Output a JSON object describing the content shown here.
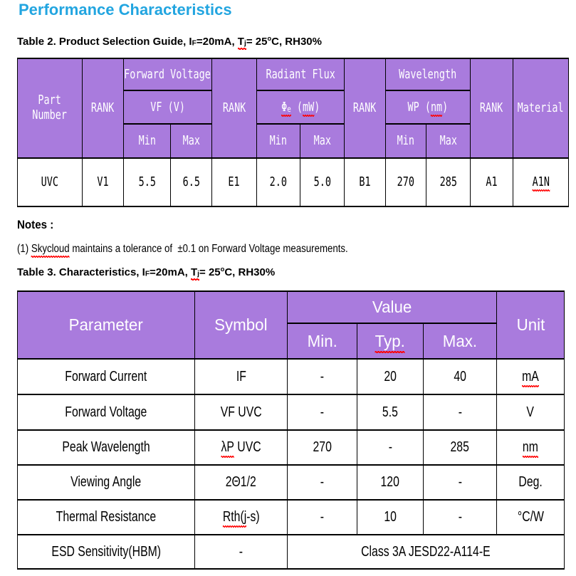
{
  "colors": {
    "title": "#22a5e0",
    "table_header_fill": "#a97bdd",
    "header_text": "#ffffff",
    "body_text": "#000000",
    "border": "#000000",
    "squiggle": "#ff0000"
  },
  "title": "Performance Characteristics",
  "table2": {
    "caption": [
      {
        "t": "Table 2. Product Selection Guide, I"
      },
      {
        "t": "F",
        "sub": 1
      },
      {
        "t": "=20mA, "
      },
      {
        "sq": 1,
        "parts": [
          {
            "t": "T"
          },
          {
            "t": "j",
            "sub": 1
          }
        ]
      },
      {
        "t": "= 25"
      },
      {
        "t": "o",
        "sup": 1
      },
      {
        "t": "C, RH30%"
      }
    ],
    "header": {
      "part_number": "Part\nNumber",
      "rank": "RANK",
      "min": "Min",
      "max": "Max",
      "material": "Material",
      "groups": {
        "forward_voltage": {
          "title": "Forward Voltage",
          "symbol": [
            {
              "t": "VF (V)"
            }
          ]
        },
        "radiant_flux": {
          "title": "Radiant Flux",
          "symbol": [
            {
              "sq": 1,
              "parts": [
                {
                  "t": "Φ"
                },
                {
                  "t": "e",
                  "sub": 1
                }
              ]
            },
            {
              "t": " ("
            },
            {
              "t": "mW",
              "sq": 1
            },
            {
              "t": ")"
            }
          ]
        },
        "wavelength": {
          "title": "Wavelength",
          "symbol": [
            {
              "t": "WP ("
            },
            {
              "t": "nm",
              "sq": 1
            },
            {
              "t": ")"
            }
          ]
        }
      }
    },
    "row": {
      "part": "UVC",
      "rank_v": "V1",
      "vf_min": "5.5",
      "vf_max": "6.5",
      "rank_e": "E1",
      "flux_min": "2.0",
      "flux_max": "5.0",
      "rank_b": "B1",
      "wl_min": "270",
      "wl_max": "285",
      "rank_a": "A1",
      "material": [
        {
          "t": "A1N",
          "sq": 1
        }
      ]
    }
  },
  "notes": {
    "heading": "Notes :",
    "note1": [
      {
        "t": "(1) "
      },
      {
        "t": "Skycloud",
        "sq": 1
      },
      {
        "t": " maintains a tolerance of  ±0.1 on Forward Voltage measurements."
      }
    ]
  },
  "table3": {
    "caption": [
      {
        "t": "Table 3. Characteristics, I"
      },
      {
        "t": "F",
        "sub": 1
      },
      {
        "t": "=20mA, "
      },
      {
        "sq": 1,
        "parts": [
          {
            "t": "T"
          },
          {
            "t": "j",
            "sub": 1
          }
        ]
      },
      {
        "t": "= 25"
      },
      {
        "t": "o",
        "sup": 1
      },
      {
        "t": "C, RH30%"
      }
    ],
    "header": {
      "parameter": "Parameter",
      "symbol": "Symbol",
      "value": "Value",
      "unit": "Unit",
      "min": "Min.",
      "typ": [
        {
          "t": "Typ.",
          "sq": 1
        }
      ],
      "max": "Max."
    },
    "rows": [
      {
        "parameter": "Forward Current",
        "symbol": [
          {
            "t": "IF"
          }
        ],
        "min": "-",
        "typ": "20",
        "max": "40",
        "unit": [
          {
            "t": "mA",
            "sq": 1
          }
        ]
      },
      {
        "parameter": "Forward Voltage",
        "symbol": [
          {
            "t": "VF UVC"
          }
        ],
        "min": "-",
        "typ": "5.5",
        "max": "-",
        "unit": [
          {
            "t": "V"
          }
        ]
      },
      {
        "parameter": "Peak Wavelength",
        "symbol": [
          {
            "t": "λP",
            "sq": 1
          },
          {
            "t": " UVC"
          }
        ],
        "min": "270",
        "typ": "-",
        "max": "285",
        "unit": [
          {
            "t": "nm",
            "sq": 1
          }
        ]
      },
      {
        "parameter": "Viewing Angle",
        "symbol": [
          {
            "t": "2Θ1/2"
          }
        ],
        "min": "-",
        "typ": "120",
        "max": "-",
        "unit": [
          {
            "t": "Deg."
          }
        ]
      },
      {
        "parameter": "Thermal Resistance",
        "symbol": [
          {
            "t": "Rth(j",
            "sq": 1
          },
          {
            "t": "-s)"
          }
        ],
        "min": "-",
        "typ": "10",
        "max": "-",
        "unit": [
          {
            "t": "°C/W"
          }
        ]
      },
      {
        "parameter": "ESD Sensitivity(HBM)",
        "symbol": [
          {
            "t": "-"
          }
        ],
        "value_span": "Class 3A JESD22-A114-E"
      }
    ]
  }
}
